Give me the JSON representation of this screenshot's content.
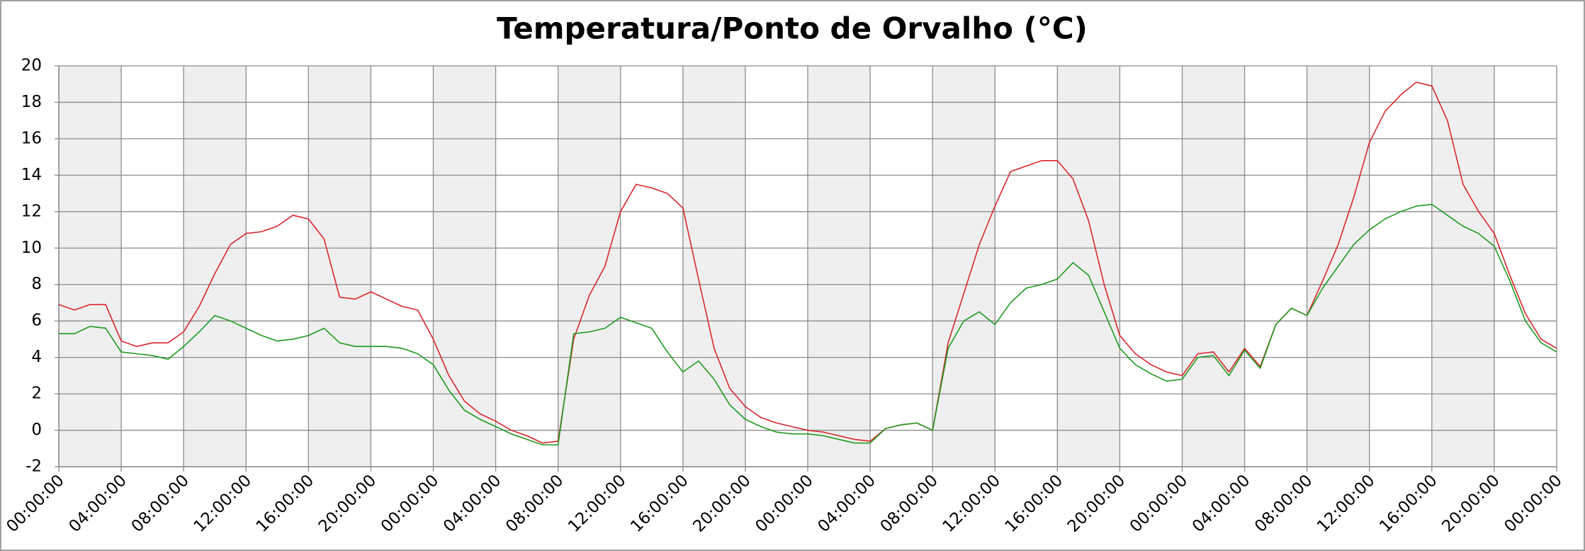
{
  "chart_data": {
    "type": "line",
    "title": "Temperatura/Ponto de Orvalho (°C)",
    "x": [
      0,
      1,
      2,
      3,
      4,
      5,
      6,
      7,
      8,
      9,
      10,
      11,
      12,
      13,
      14,
      15,
      16,
      17,
      18,
      19,
      20,
      21,
      22,
      23,
      24,
      25,
      26,
      27,
      28,
      29,
      30,
      31,
      32,
      33,
      34,
      35,
      36,
      37,
      38,
      39,
      40,
      41,
      42,
      43,
      44,
      45,
      46,
      47,
      48,
      49,
      50,
      51,
      52,
      53,
      54,
      55,
      56,
      57,
      58,
      59,
      60,
      61,
      62,
      63,
      64,
      65,
      66,
      67,
      68,
      69,
      70,
      71,
      72,
      73,
      74,
      75,
      76,
      77,
      78,
      79,
      80,
      81,
      82,
      83,
      84,
      85,
      86,
      87,
      88,
      89,
      90,
      91,
      92,
      93,
      94,
      95,
      96
    ],
    "series": [
      {
        "color": "#d9262b",
        "values": [
          6.9,
          6.6,
          6.9,
          6.9,
          4.9,
          4.6,
          4.8,
          4.8,
          5.4,
          6.8,
          8.6,
          10.2,
          10.8,
          10.9,
          11.2,
          11.8,
          11.6,
          10.5,
          7.3,
          7.2,
          7.6,
          7.2,
          6.8,
          6.6,
          5.0,
          3.0,
          1.6,
          0.9,
          0.5,
          0.0,
          -0.3,
          -0.7,
          -0.6,
          5.0,
          7.4,
          9.0,
          12.0,
          13.5,
          13.3,
          13.0,
          12.2,
          8.3,
          4.5,
          2.3,
          1.3,
          0.7,
          0.4,
          0.2,
          0.0,
          -0.1,
          -0.3,
          -0.5,
          -0.6,
          0.1,
          0.3,
          0.4,
          0.0,
          4.8,
          7.5,
          10.2,
          12.3,
          14.2,
          14.5,
          14.8,
          14.8,
          13.8,
          11.5,
          8.0,
          5.2,
          4.2,
          3.6,
          3.2,
          3.0,
          4.2,
          4.3,
          3.2,
          4.5,
          3.5,
          5.8,
          6.7,
          6.3,
          8.2,
          10.2,
          12.8,
          15.8,
          17.5,
          18.4,
          19.1,
          18.9,
          17.0,
          13.5,
          12.0,
          10.8,
          8.5,
          6.4,
          5.0,
          4.5
        ]
      },
      {
        "color": "#1f9a1f",
        "values": [
          5.3,
          5.3,
          5.7,
          5.6,
          4.3,
          4.2,
          4.1,
          3.9,
          4.6,
          5.4,
          6.3,
          6.0,
          5.6,
          5.2,
          4.9,
          5.0,
          5.2,
          5.6,
          4.8,
          4.6,
          4.6,
          4.6,
          4.5,
          4.2,
          3.6,
          2.2,
          1.1,
          0.6,
          0.2,
          -0.2,
          -0.5,
          -0.8,
          -0.8,
          5.3,
          5.4,
          5.6,
          6.2,
          5.9,
          5.6,
          4.3,
          3.2,
          3.8,
          2.8,
          1.4,
          0.6,
          0.2,
          -0.1,
          -0.2,
          -0.2,
          -0.3,
          -0.5,
          -0.7,
          -0.7,
          0.1,
          0.3,
          0.4,
          0.0,
          4.5,
          6.0,
          6.5,
          5.8,
          7.0,
          7.8,
          8.0,
          8.3,
          9.2,
          8.5,
          6.5,
          4.5,
          3.6,
          3.1,
          2.7,
          2.8,
          4.0,
          4.1,
          3.0,
          4.4,
          3.4,
          5.8,
          6.7,
          6.3,
          7.8,
          9.0,
          10.2,
          11.0,
          11.6,
          12.0,
          12.3,
          12.4,
          11.8,
          11.2,
          10.8,
          10.1,
          8.2,
          6.0,
          4.8,
          4.3
        ]
      }
    ],
    "xlim": [
      0,
      96
    ],
    "xticks": [
      {
        "value": 0,
        "label": "00:00:00"
      },
      {
        "value": 4,
        "label": "04:00:00"
      },
      {
        "value": 8,
        "label": "08:00:00"
      },
      {
        "value": 12,
        "label": "12:00:00"
      },
      {
        "value": 16,
        "label": "16:00:00"
      },
      {
        "value": 20,
        "label": "20:00:00"
      },
      {
        "value": 24,
        "label": "00:00:00"
      },
      {
        "value": 28,
        "label": "04:00:00"
      },
      {
        "value": 32,
        "label": "08:00:00"
      },
      {
        "value": 36,
        "label": "12:00:00"
      },
      {
        "value": 40,
        "label": "16:00:00"
      },
      {
        "value": 44,
        "label": "20:00:00"
      },
      {
        "value": 48,
        "label": "00:00:00"
      },
      {
        "value": 52,
        "label": "04:00:00"
      },
      {
        "value": 56,
        "label": "08:00:00"
      },
      {
        "value": 60,
        "label": "12:00:00"
      },
      {
        "value": 64,
        "label": "16:00:00"
      },
      {
        "value": 68,
        "label": "20:00:00"
      },
      {
        "value": 72,
        "label": "00:00:00"
      },
      {
        "value": 76,
        "label": "04:00:00"
      },
      {
        "value": 80,
        "label": "08:00:00"
      },
      {
        "value": 84,
        "label": "12:00:00"
      },
      {
        "value": 88,
        "label": "16:00:00"
      },
      {
        "value": 92,
        "label": "20:00:00"
      },
      {
        "value": 96,
        "label": "00:00:00"
      }
    ],
    "ylim": [
      -2,
      20
    ],
    "yticks": [
      -2,
      0,
      2,
      4,
      6,
      8,
      10,
      12,
      14,
      16,
      18,
      20
    ],
    "grid": true
  }
}
